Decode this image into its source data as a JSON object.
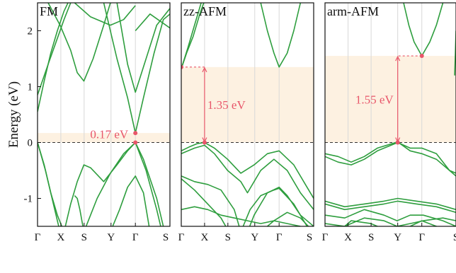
{
  "chart_data": {
    "type": "line",
    "ylabel": "Energy (eV)",
    "ylim": [
      -1.5,
      2.5
    ],
    "y_ticks": [
      "-1",
      "0",
      "1",
      "2"
    ],
    "x_ticks": [
      "Γ",
      "X",
      "S",
      "Y",
      "Γ",
      "S"
    ],
    "colors": {
      "bands": "#2e9e3e",
      "gap_region": "#fdf1e1",
      "gap_marker": "#e8566a",
      "fermi": "#333333"
    },
    "panels": [
      {
        "title": "FM",
        "gap_label": "0.17 eV",
        "gap": 0.17,
        "vbm_k": "Γ",
        "cbm_k": "Γ"
      },
      {
        "title": "zz-AFM",
        "gap_label": "1.35 eV",
        "gap": 1.35,
        "vbm_k": "X",
        "cbm_k": "Γ"
      },
      {
        "title": "arm-AFM",
        "gap_label": "1.55 eV",
        "gap": 1.55,
        "vbm_k": "Y",
        "cbm_k": "Γ"
      }
    ]
  }
}
